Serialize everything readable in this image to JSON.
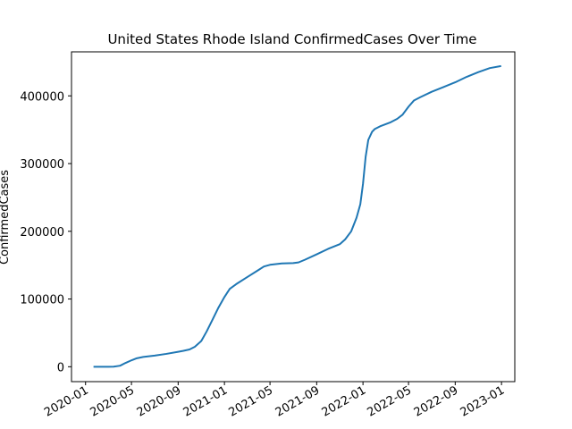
{
  "chart_data": {
    "type": "line",
    "title": "United States Rhode Island ConfirmedCases Over Time",
    "xlabel": "",
    "ylabel": "ConfirmedCases",
    "x_ticks": [
      "2020-01",
      "2020-05",
      "2020-09",
      "2021-01",
      "2021-05",
      "2021-09",
      "2022-01",
      "2022-05",
      "2022-09",
      "2023-01"
    ],
    "y_ticks": [
      0,
      100000,
      200000,
      300000,
      400000
    ],
    "xlim": [
      "2019-11-25",
      "2023-02-05"
    ],
    "ylim": [
      -22000,
      465000
    ],
    "grid": false,
    "legend": "none",
    "series": [
      {
        "color": "#1f77b4",
        "points": [
          [
            "2020-01-22",
            0
          ],
          [
            "2020-02-15",
            0
          ],
          [
            "2020-03-01",
            0
          ],
          [
            "2020-03-15",
            100
          ],
          [
            "2020-04-01",
            1500
          ],
          [
            "2020-04-15",
            5500
          ],
          [
            "2020-05-01",
            9500
          ],
          [
            "2020-05-15",
            12500
          ],
          [
            "2020-06-01",
            14500
          ],
          [
            "2020-07-01",
            16500
          ],
          [
            "2020-08-01",
            19000
          ],
          [
            "2020-09-01",
            22000
          ],
          [
            "2020-09-15",
            23500
          ],
          [
            "2020-10-01",
            25500
          ],
          [
            "2020-10-15",
            29500
          ],
          [
            "2020-11-01",
            38000
          ],
          [
            "2020-11-15",
            52000
          ],
          [
            "2020-12-01",
            70000
          ],
          [
            "2020-12-15",
            86000
          ],
          [
            "2021-01-01",
            103000
          ],
          [
            "2021-01-15",
            115000
          ],
          [
            "2021-02-01",
            122000
          ],
          [
            "2021-03-01",
            132000
          ],
          [
            "2021-04-01",
            143000
          ],
          [
            "2021-04-15",
            148000
          ],
          [
            "2021-05-01",
            150500
          ],
          [
            "2021-06-01",
            152500
          ],
          [
            "2021-07-01",
            153000
          ],
          [
            "2021-07-15",
            154000
          ],
          [
            "2021-08-01",
            158000
          ],
          [
            "2021-09-01",
            166000
          ],
          [
            "2021-10-01",
            174000
          ],
          [
            "2021-11-01",
            181000
          ],
          [
            "2021-11-15",
            188000
          ],
          [
            "2021-12-01",
            200000
          ],
          [
            "2021-12-15",
            220000
          ],
          [
            "2021-12-25",
            240000
          ],
          [
            "2022-01-01",
            270000
          ],
          [
            "2022-01-08",
            310000
          ],
          [
            "2022-01-15",
            335000
          ],
          [
            "2022-01-25",
            347000
          ],
          [
            "2022-02-01",
            351000
          ],
          [
            "2022-02-15",
            355000
          ],
          [
            "2022-03-01",
            358000
          ],
          [
            "2022-03-15",
            361000
          ],
          [
            "2022-04-01",
            366000
          ],
          [
            "2022-04-15",
            372000
          ],
          [
            "2022-05-01",
            384000
          ],
          [
            "2022-05-15",
            393000
          ],
          [
            "2022-06-01",
            398000
          ],
          [
            "2022-07-01",
            406000
          ],
          [
            "2022-08-01",
            413000
          ],
          [
            "2022-09-01",
            420000
          ],
          [
            "2022-10-01",
            428000
          ],
          [
            "2022-11-01",
            435000
          ],
          [
            "2022-12-01",
            441000
          ],
          [
            "2022-12-31",
            444000
          ]
        ]
      }
    ]
  }
}
